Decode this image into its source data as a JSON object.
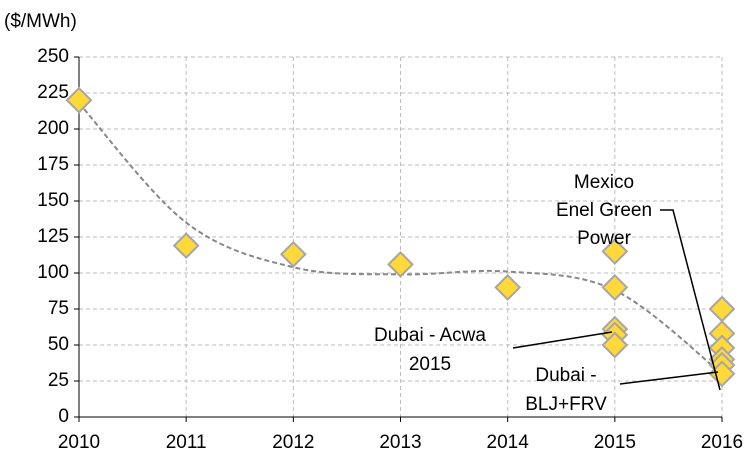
{
  "chart_data": {
    "type": "scatter",
    "y_axis_label": "($/MWh)",
    "xlim": [
      2010,
      2016
    ],
    "xticks": [
      2010,
      2011,
      2012,
      2013,
      2014,
      2015,
      2016
    ],
    "ylim": [
      0,
      250
    ],
    "yticks": [
      0,
      25,
      50,
      75,
      100,
      125,
      150,
      175,
      200,
      225,
      250
    ],
    "grid": true,
    "series": [
      {
        "color": "#ffd83a",
        "x": [
          2010,
          2011,
          2012,
          2013,
          2014,
          2015,
          2015,
          2015,
          2015,
          2015,
          2016,
          2016,
          2016,
          2016,
          2016,
          2016
        ],
        "values": [
          220,
          119,
          113,
          106,
          90,
          115,
          90,
          61,
          57,
          50,
          75,
          58,
          48,
          40,
          36,
          30
        ]
      },
      {
        "type": "line",
        "line_style": "dashed",
        "color": "#888888",
        "x": [
          2010,
          2011,
          2012,
          2013,
          2014,
          2015,
          2016
        ],
        "values": [
          218,
          135,
          104,
          99,
          101,
          88,
          30
        ]
      }
    ],
    "annotations": [
      {
        "lines": [
          "Mexico",
          "Enel Green",
          "Power"
        ]
      },
      {
        "lines": [
          "Dubai - Acwa",
          "2015"
        ]
      },
      {
        "lines": [
          "Dubai -",
          "BLJ+FRV"
        ]
      }
    ]
  }
}
